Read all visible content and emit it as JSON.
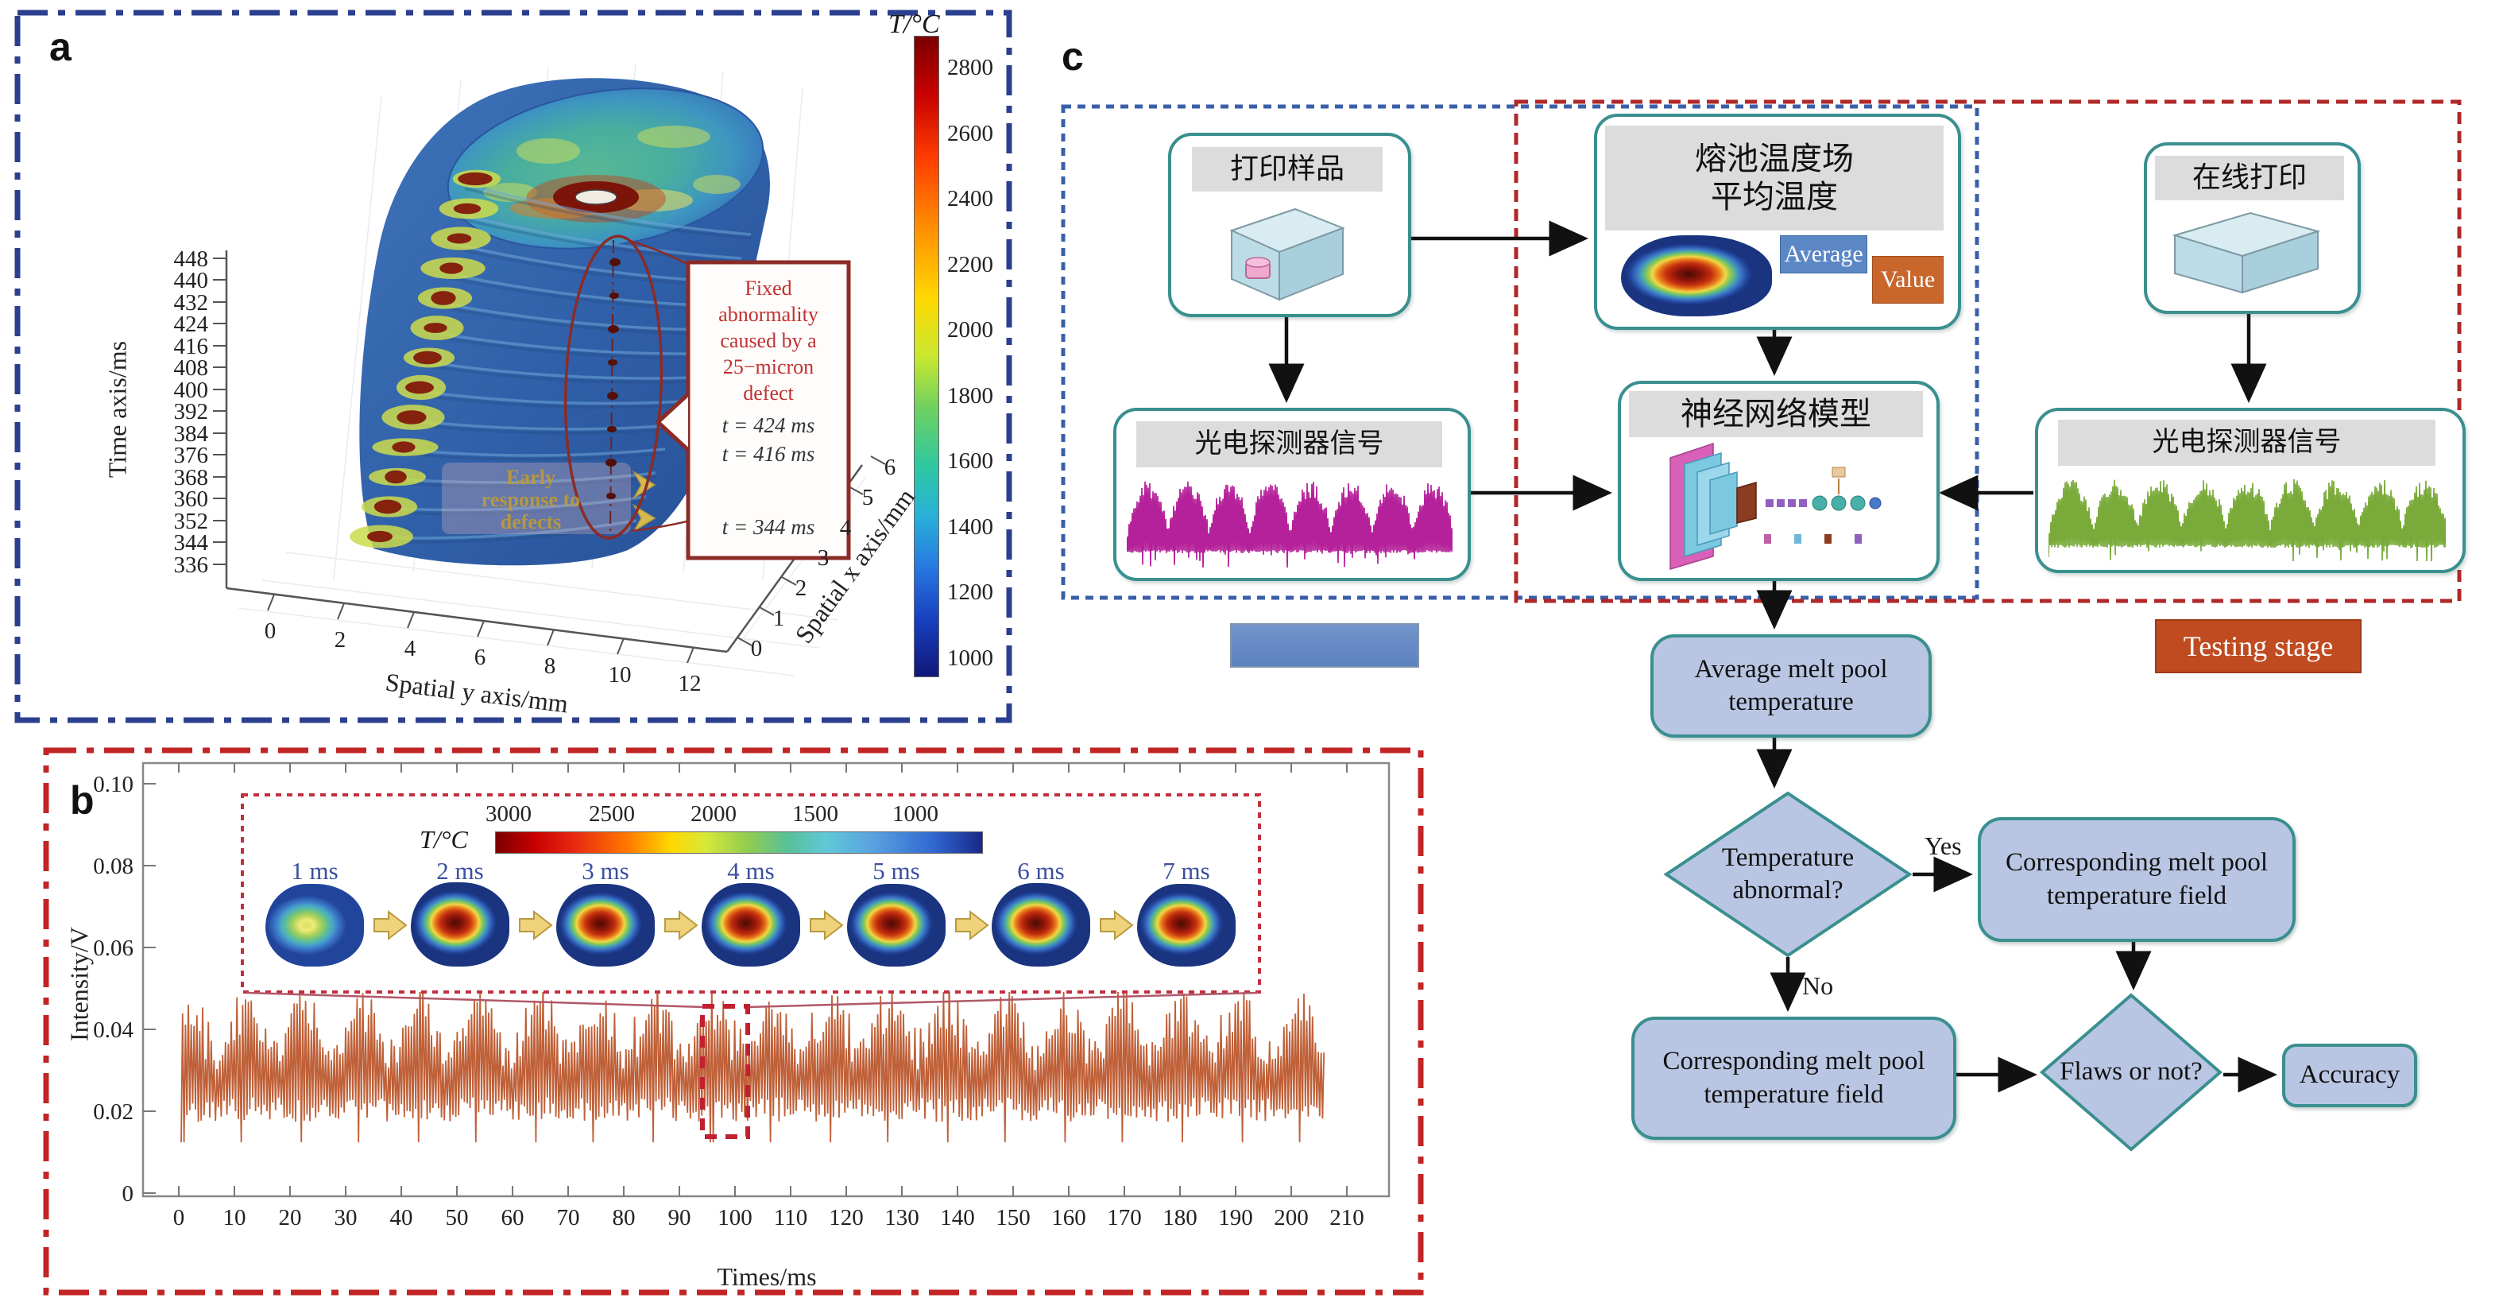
{
  "panel_a": {
    "label": "a",
    "border_color": "#2b3f8f",
    "colorbar": {
      "title": "T/°C",
      "ticks": [
        "2800",
        "2600",
        "2400",
        "2200",
        "2000",
        "1800",
        "1600",
        "1400",
        "1200",
        "1000"
      ]
    },
    "time_axis": {
      "label": "Time axis/ms",
      "ticks": [
        "448",
        "440",
        "432",
        "424",
        "416",
        "408",
        "400",
        "392",
        "384",
        "376",
        "368",
        "360",
        "352",
        "344",
        "336"
      ]
    },
    "spatial_y_axis": {
      "label": "Spatial y axis/mm",
      "ticks": [
        "0",
        "2",
        "4",
        "6",
        "8",
        "10",
        "12"
      ]
    },
    "spatial_x_axis": {
      "label": "Spatial x axis/mm",
      "ticks": [
        "0",
        "1",
        "2",
        "3",
        "4",
        "5",
        "6"
      ]
    },
    "annotation": {
      "lines": [
        "Fixed",
        "abnormality",
        "caused by a",
        "25−micron",
        "defect"
      ],
      "t1": "t = 424 ms",
      "t2": "t = 416 ms",
      "t3": "t = 344 ms"
    },
    "overlay": {
      "line1": "Early",
      "line2": "response to",
      "line3": "defects"
    }
  },
  "panel_b": {
    "label": "b",
    "border_color": "#c22525",
    "ylabel": "Intensity/V",
    "xlabel": "Times/ms",
    "y_ticks": [
      "0",
      "0.02",
      "0.04",
      "0.06",
      "0.08",
      "0.10"
    ],
    "x_ticks": [
      "0",
      "10",
      "20",
      "30",
      "40",
      "50",
      "60",
      "70",
      "80",
      "90",
      "100",
      "110",
      "120",
      "130",
      "140",
      "150",
      "160",
      "170",
      "180",
      "190",
      "200",
      "210"
    ],
    "wave_color": "#bf6038",
    "inset": {
      "colorbar_title": "T/°C",
      "colorbar_ticks": [
        "3000",
        "2500",
        "2000",
        "1500",
        "1000"
      ],
      "frames": [
        "1 ms",
        "2 ms",
        "3 ms",
        "4 ms",
        "5 ms",
        "6 ms",
        "7 ms"
      ]
    }
  },
  "panel_c": {
    "label": "c",
    "boxes": {
      "print_sample": "打印样品",
      "melt_pool_line1": "熔池温度场",
      "melt_pool_line2": "平均温度",
      "average": "Average",
      "value": "Value",
      "online_print": "在线打印",
      "pd_signal_train": "光电探测器信号",
      "nn_model": "神经网络模型",
      "pd_signal_test": "光电探测器信号"
    },
    "stages": {
      "testing": "Testing stage"
    },
    "flow": {
      "avg_temp": "Average melt pool temperature",
      "temp_abnormal": "Temperature abnormal?",
      "yes": "Yes",
      "no": "No",
      "field_yes": "Corresponding melt pool temperature field",
      "field_no": "Corresponding melt pool temperature field",
      "flaws": "Flaws or not?",
      "accuracy": "Accuracy"
    },
    "signal_colors": {
      "train": "#b5219a",
      "test": "#7aab3a"
    }
  },
  "chart_data": [
    {
      "type": "heatmap",
      "title": "3D stacked melt-pool temperature field (panel a)",
      "xlabel": "Spatial y axis/mm",
      "ylabel": "Time axis/ms",
      "zlabel": "Spatial x axis/mm",
      "colorbar_label": "T/°C",
      "colorbar_range": [
        900,
        2900
      ],
      "colorbar_ticks": [
        2800,
        2600,
        2400,
        2200,
        2000,
        1800,
        1600,
        1400,
        1200,
        1000
      ],
      "time_ticks_ms": [
        336,
        344,
        352,
        360,
        368,
        376,
        384,
        392,
        400,
        408,
        416,
        424,
        432,
        440,
        448
      ],
      "spatial_y_ticks_mm": [
        0,
        2,
        4,
        6,
        8,
        10,
        12
      ],
      "spatial_x_ticks_mm": [
        0,
        1,
        2,
        3,
        4,
        5,
        6
      ],
      "annotations": [
        "Fixed abnormality caused by a 25−micron defect",
        "t = 424 ms",
        "t = 416 ms",
        "t = 344 ms",
        "Early response to defects"
      ]
    },
    {
      "type": "line",
      "title": "Photodetector intensity signal (panel b)",
      "xlabel": "Times/ms",
      "ylabel": "Intensity/V",
      "xlim": [
        0,
        210
      ],
      "ylim": [
        0,
        0.1
      ],
      "x_ticks": [
        0,
        10,
        20,
        30,
        40,
        50,
        60,
        70,
        80,
        90,
        100,
        110,
        120,
        130,
        140,
        150,
        160,
        170,
        180,
        190,
        200,
        210
      ],
      "y_ticks": [
        0,
        0.02,
        0.04,
        0.06,
        0.08,
        0.1
      ],
      "grid": false,
      "series": [
        {
          "name": "photodetector intensity",
          "description": "dense ~1 ms period sawtooth oscillation, envelope modulated with ~10.5 ms period; minima ≈ 0.006 V, typical peaks 0.030–0.042 V, spanning x = 0–205 ms",
          "y_min": 0.006,
          "y_peak_range": [
            0.03,
            0.042
          ],
          "envelope_period_ms": 10.5,
          "x_start": 0,
          "x_end": 205
        }
      ],
      "inset": {
        "colorbar_label": "T/°C",
        "colorbar_ticks": [
          3000,
          2500,
          2000,
          1500,
          1000
        ],
        "frame_labels": [
          "1 ms",
          "2 ms",
          "3 ms",
          "4 ms",
          "5 ms",
          "6 ms",
          "7 ms"
        ]
      }
    }
  ]
}
